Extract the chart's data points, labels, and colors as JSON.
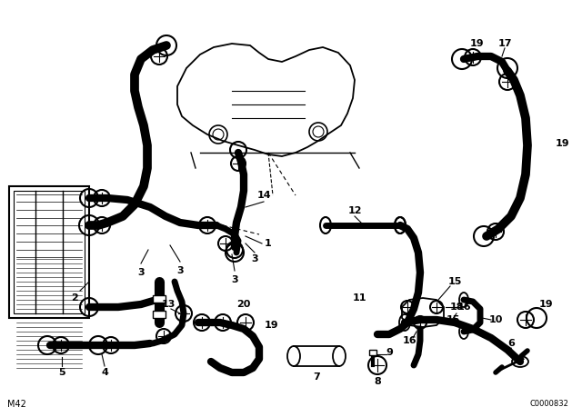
{
  "bg_color": "#ffffff",
  "line_color": "#000000",
  "footer_left": "M42",
  "footer_right": "C0000832",
  "fig_w": 6.4,
  "fig_h": 4.48,
  "dpi": 100
}
